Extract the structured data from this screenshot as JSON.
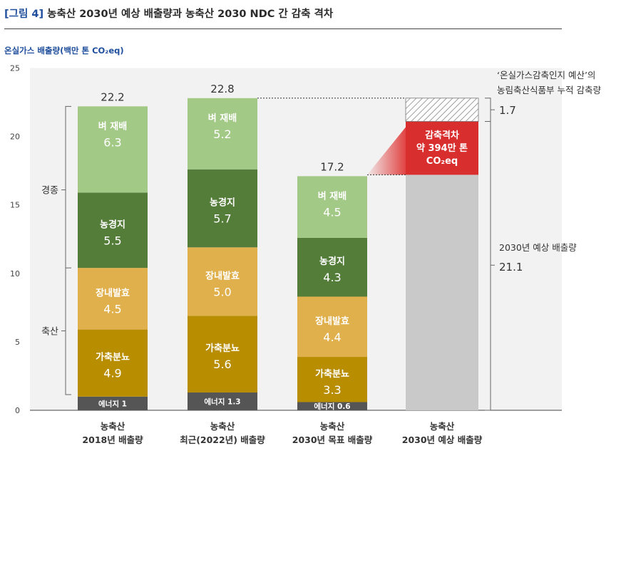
{
  "figure": {
    "label": "[그림 4]",
    "title": "농축산 2030년 예상 배출량과 농축산 2030 NDC 간 감축 격차",
    "unit": "온실가스 배출량(백만 톤 CO₂eq)"
  },
  "colors": {
    "energy": "#555555",
    "manure": "#b88d00",
    "enteric": "#e0b04c",
    "soil": "#547d3a",
    "rice": "#a3c986",
    "projection": "#c9c9c9",
    "gap": "#d92e2e",
    "plot_bg": "#f2f2f2"
  },
  "chart_data": {
    "type": "bar",
    "stacked": true,
    "ylim": [
      0,
      25
    ],
    "yticks": [
      0,
      5,
      10,
      15,
      20,
      25
    ],
    "categories": [
      [
        "농축산",
        "2018년 배출량"
      ],
      [
        "농축산",
        "최근(2022년) 배출량"
      ],
      [
        "농축산",
        "2030년 목표 배출량"
      ],
      [
        "농축산",
        "2030년 예상 배출량"
      ]
    ],
    "series": [
      {
        "key": "energy",
        "name": "에너지",
        "values": [
          1,
          1.3,
          0.6,
          null
        ]
      },
      {
        "key": "manure",
        "name": "가축분뇨",
        "values": [
          4.9,
          5.6,
          3.3,
          null
        ]
      },
      {
        "key": "enteric",
        "name": "장내발효",
        "values": [
          4.5,
          5.0,
          4.4,
          null
        ]
      },
      {
        "key": "soil",
        "name": "농경지",
        "values": [
          5.5,
          5.7,
          4.3,
          null
        ]
      },
      {
        "key": "rice",
        "name": "벼 재배",
        "values": [
          6.3,
          5.2,
          4.5,
          null
        ]
      }
    ],
    "segment_labels": [
      {
        "energy": "에너지 1",
        "manure": [
          "가축분뇨",
          "4.9"
        ],
        "enteric": [
          "장내발효",
          "4.5"
        ],
        "soil": [
          "농경지",
          "5.5"
        ],
        "rice": [
          "벼 재배",
          "6.3"
        ]
      },
      {
        "energy": "에너지 1.3",
        "manure": [
          "가축분뇨",
          "5.6"
        ],
        "enteric": [
          "장내발효",
          "5.0"
        ],
        "soil": [
          "농경지",
          "5.7"
        ],
        "rice": [
          "벼 재배",
          "5.2"
        ]
      },
      {
        "energy": "에너지 0.6",
        "manure": [
          "가축분뇨",
          "3.3"
        ],
        "enteric": [
          "장내발효",
          "4.4"
        ],
        "soil": [
          "농경지",
          "4.3"
        ],
        "rice": [
          "벼 재배",
          "4.5"
        ]
      }
    ],
    "totals": [
      "22.2",
      "22.8",
      "17.2"
    ],
    "groups": {
      "livestock": {
        "label": "축산",
        "range": [
          0,
          10.4
        ]
      },
      "cropland": {
        "label": "경종",
        "range": [
          10.4,
          22.2
        ]
      }
    },
    "projection": {
      "expected": 21.1,
      "target": 17.2,
      "budget_offset": 1.7,
      "top": 22.8,
      "gap_label": [
        "감축격차",
        "약 394만 톤",
        "CO₂eq"
      ],
      "budget_caption": [
        "‘온실가스감축인지 예산’의",
        "농림축산식품부 누적 감축량"
      ],
      "budget_value": "1.7",
      "expected_caption": "2030년 예상 배출량",
      "expected_value": "21.1"
    }
  }
}
